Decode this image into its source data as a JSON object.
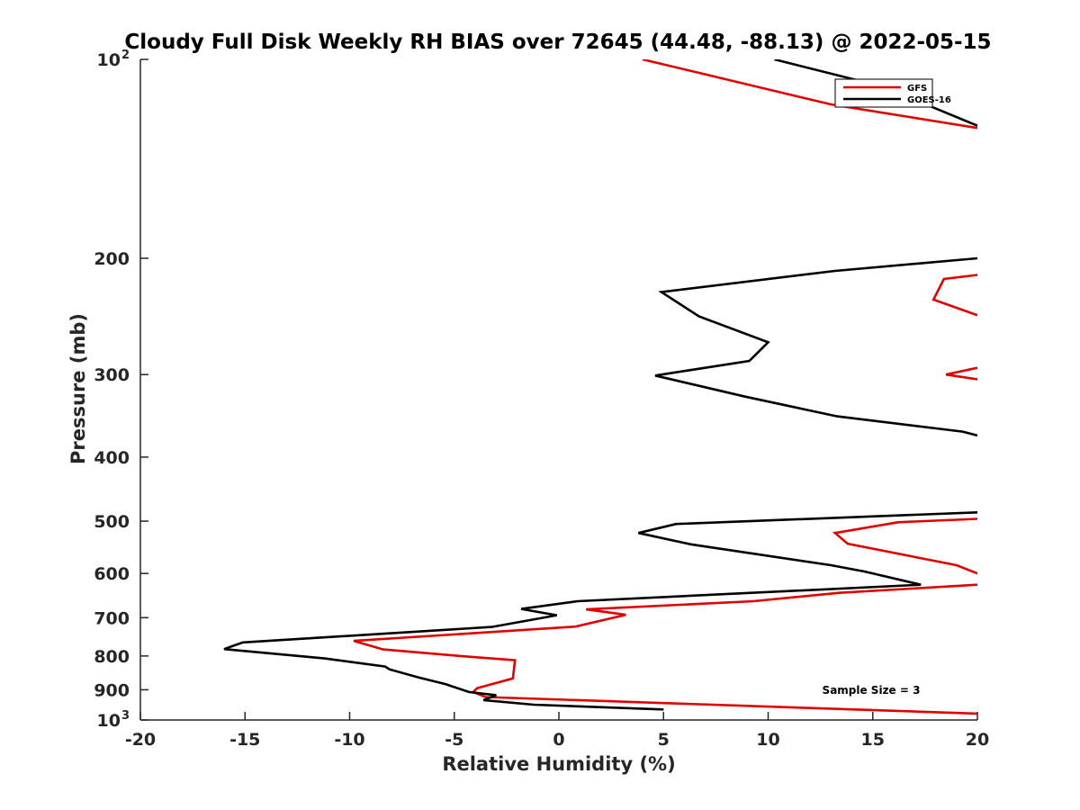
{
  "chart_data": {
    "type": "line",
    "title": "Cloudy Full Disk Weekly RH BIAS over 72645 (44.48, -88.13) @ 2022-05-15",
    "xlabel": "Relative Humidity (%)",
    "ylabel": "Pressure (mb)",
    "xlim": [
      -20,
      20
    ],
    "ylim": [
      100,
      1000
    ],
    "y_scale": "log",
    "y_reversed": true,
    "grid": false,
    "legend_position": "top-right",
    "x_ticks": [
      -20,
      -15,
      -10,
      -5,
      0,
      5,
      10,
      15,
      20
    ],
    "x_tick_labels": [
      "-20",
      "-15",
      "-10",
      "-5",
      "0",
      "5",
      "10",
      "15",
      "20"
    ],
    "y_ticks": [
      100,
      200,
      300,
      400,
      500,
      600,
      700,
      800,
      900,
      1000
    ],
    "y_tick_labels": [
      {
        "base": "10",
        "exp": "2"
      },
      {
        "base": "200",
        "exp": ""
      },
      {
        "base": "300",
        "exp": ""
      },
      {
        "base": "400",
        "exp": ""
      },
      {
        "base": "500",
        "exp": ""
      },
      {
        "base": "600",
        "exp": ""
      },
      {
        "base": "700",
        "exp": ""
      },
      {
        "base": "800",
        "exp": ""
      },
      {
        "base": "900",
        "exp": ""
      },
      {
        "base": "10",
        "exp": "3"
      }
    ],
    "annotation": "Sample Size = 3",
    "series": [
      {
        "name": "GFS",
        "color": "#e00000",
        "segments": [
          [
            [
              4,
              100
            ],
            [
              13,
              117
            ],
            [
              20,
              127
            ]
          ],
          [
            [
              20,
              212
            ],
            [
              18.4,
              215
            ],
            [
              17.9,
              231
            ],
            [
              20,
              244
            ]
          ],
          [
            [
              20,
              293
            ],
            [
              18.5,
              300
            ],
            [
              20,
              305
            ]
          ],
          [
            [
              20,
              496
            ],
            [
              16.2,
              502
            ],
            [
              13.2,
              521
            ],
            [
              13.8,
              541
            ],
            [
              19,
              583
            ],
            [
              20,
              600
            ]
          ],
          [
            [
              20,
              624
            ],
            [
              13.4,
              642
            ],
            [
              9.3,
              661
            ],
            [
              1.3,
              680
            ],
            [
              3.2,
              693
            ],
            [
              0.8,
              722
            ],
            [
              -9.8,
              759
            ],
            [
              -8.4,
              782
            ],
            [
              -4.7,
              800
            ],
            [
              -2.1,
              812
            ],
            [
              -2.2,
              865
            ],
            [
              -3.9,
              895
            ],
            [
              -4.1,
              907
            ],
            [
              -3.5,
              923
            ],
            [
              20,
              978
            ]
          ]
        ]
      },
      {
        "name": "GOES-16",
        "color": "#000000",
        "segments": [
          [
            [
              10.3,
              100
            ],
            [
              15.5,
              110
            ],
            [
              20,
              126
            ]
          ],
          [
            [
              20,
              200
            ],
            [
              13.2,
              209
            ],
            [
              4.9,
              225
            ],
            [
              6.7,
              245
            ],
            [
              10,
              268
            ],
            [
              9.1,
              286
            ],
            [
              4.6,
              301
            ],
            [
              8.9,
              324
            ],
            [
              13.3,
              347
            ],
            [
              19.3,
              366
            ],
            [
              20,
              371
            ]
          ],
          [
            [
              20,
              485
            ],
            [
              5.6,
              505
            ],
            [
              3.8,
              521
            ],
            [
              6.3,
              542
            ],
            [
              13,
              583
            ],
            [
              14.6,
              596
            ],
            [
              17.3,
              624
            ],
            [
              0.9,
              661
            ],
            [
              -1.8,
              679
            ],
            [
              -0.1,
              694
            ],
            [
              -3.2,
              723
            ],
            [
              -15.1,
              763
            ],
            [
              -16,
              781
            ],
            [
              -11.2,
              807
            ],
            [
              -8.3,
              830
            ],
            [
              -8.1,
              838
            ],
            [
              -6.7,
              862
            ],
            [
              -5.4,
              883
            ],
            [
              -4.3,
              907
            ],
            [
              -3,
              917
            ],
            [
              -3.6,
              933
            ],
            [
              -1.2,
              948
            ],
            [
              5,
              964
            ]
          ]
        ]
      }
    ]
  }
}
